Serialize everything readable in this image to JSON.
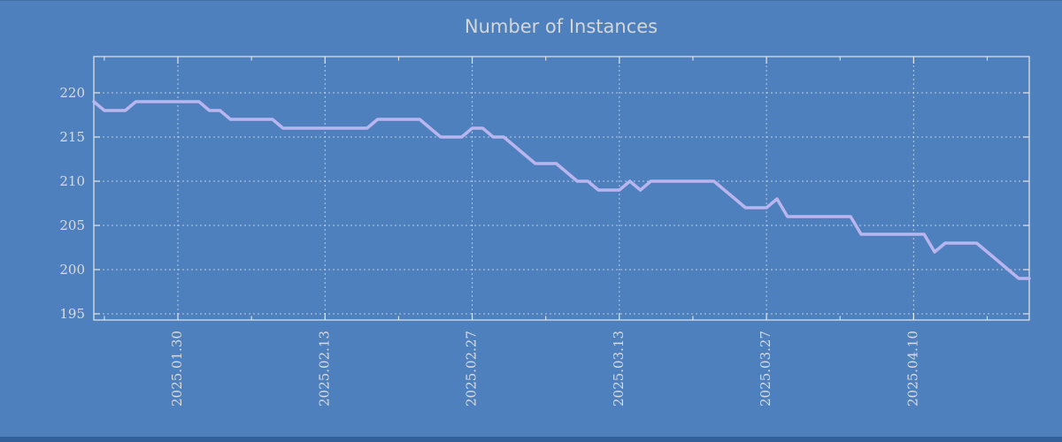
{
  "window": {
    "background": "#4e80bd",
    "bottom_strip_color": "#336099",
    "top_edge_color": "rgba(0,0,0,0.15)"
  },
  "chart_data": {
    "type": "line",
    "title": "Number of Instances",
    "series_name": "instances",
    "line_color": "#b9b5ee",
    "grid_color": "#dde4e9",
    "axis_color": "#e3e6e9",
    "tick_label_color": "#d8dce0",
    "title_color": "#d4d6d8",
    "grid": true,
    "legend": "none",
    "ylim": [
      194.3,
      224.1
    ],
    "y_ticks": [
      195,
      200,
      205,
      210,
      215,
      220
    ],
    "x_tick_labels": [
      "2025.01.30",
      "2025.02.13",
      "2025.02.27",
      "2025.03.13",
      "2025.03.27",
      "2025.04.10"
    ],
    "x": [
      "2025.01.22",
      "2025.01.23",
      "2025.01.24",
      "2025.01.25",
      "2025.01.26",
      "2025.01.27",
      "2025.01.28",
      "2025.01.29",
      "2025.01.30",
      "2025.01.31",
      "2025.02.01",
      "2025.02.02",
      "2025.02.03",
      "2025.02.04",
      "2025.02.05",
      "2025.02.06",
      "2025.02.07",
      "2025.02.08",
      "2025.02.09",
      "2025.02.10",
      "2025.02.11",
      "2025.02.12",
      "2025.02.13",
      "2025.02.14",
      "2025.02.15",
      "2025.02.16",
      "2025.02.17",
      "2025.02.18",
      "2025.02.19",
      "2025.02.20",
      "2025.02.21",
      "2025.02.22",
      "2025.02.23",
      "2025.02.24",
      "2025.02.25",
      "2025.02.26",
      "2025.02.27",
      "2025.02.28",
      "2025.03.01",
      "2025.03.02",
      "2025.03.03",
      "2025.03.04",
      "2025.03.05",
      "2025.03.06",
      "2025.03.07",
      "2025.03.08",
      "2025.03.09",
      "2025.03.10",
      "2025.03.11",
      "2025.03.12",
      "2025.03.13",
      "2025.03.14",
      "2025.03.15",
      "2025.03.16",
      "2025.03.17",
      "2025.03.18",
      "2025.03.19",
      "2025.03.20",
      "2025.03.21",
      "2025.03.22",
      "2025.03.23",
      "2025.03.24",
      "2025.03.25",
      "2025.03.26",
      "2025.03.27",
      "2025.03.28",
      "2025.03.29",
      "2025.03.30",
      "2025.03.31",
      "2025.04.01",
      "2025.04.02",
      "2025.04.03",
      "2025.04.04",
      "2025.04.05",
      "2025.04.06",
      "2025.04.07",
      "2025.04.08",
      "2025.04.09",
      "2025.04.10",
      "2025.04.11",
      "2025.04.12",
      "2025.04.13",
      "2025.04.14",
      "2025.04.15",
      "2025.04.16",
      "2025.04.17",
      "2025.04.18",
      "2025.04.19",
      "2025.04.20",
      "2025.04.21"
    ],
    "values": [
      219,
      218,
      218,
      218,
      219,
      219,
      219,
      219,
      219,
      219,
      219,
      218,
      218,
      217,
      217,
      217,
      217,
      217,
      216,
      216,
      216,
      216,
      216,
      216,
      216,
      216,
      216,
      217,
      217,
      217,
      217,
      217,
      216,
      215,
      215,
      215,
      216,
      216,
      215,
      215,
      214,
      213,
      212,
      212,
      212,
      211,
      210,
      210,
      209,
      209,
      209,
      210,
      209,
      210,
      210,
      210,
      210,
      210,
      210,
      210,
      209,
      208,
      207,
      207,
      207,
      208,
      206,
      206,
      206,
      206,
      206,
      206,
      206,
      204,
      204,
      204,
      204,
      204,
      204,
      204,
      202,
      203,
      203,
      203,
      203,
      202,
      201,
      200,
      199,
      199
    ]
  }
}
